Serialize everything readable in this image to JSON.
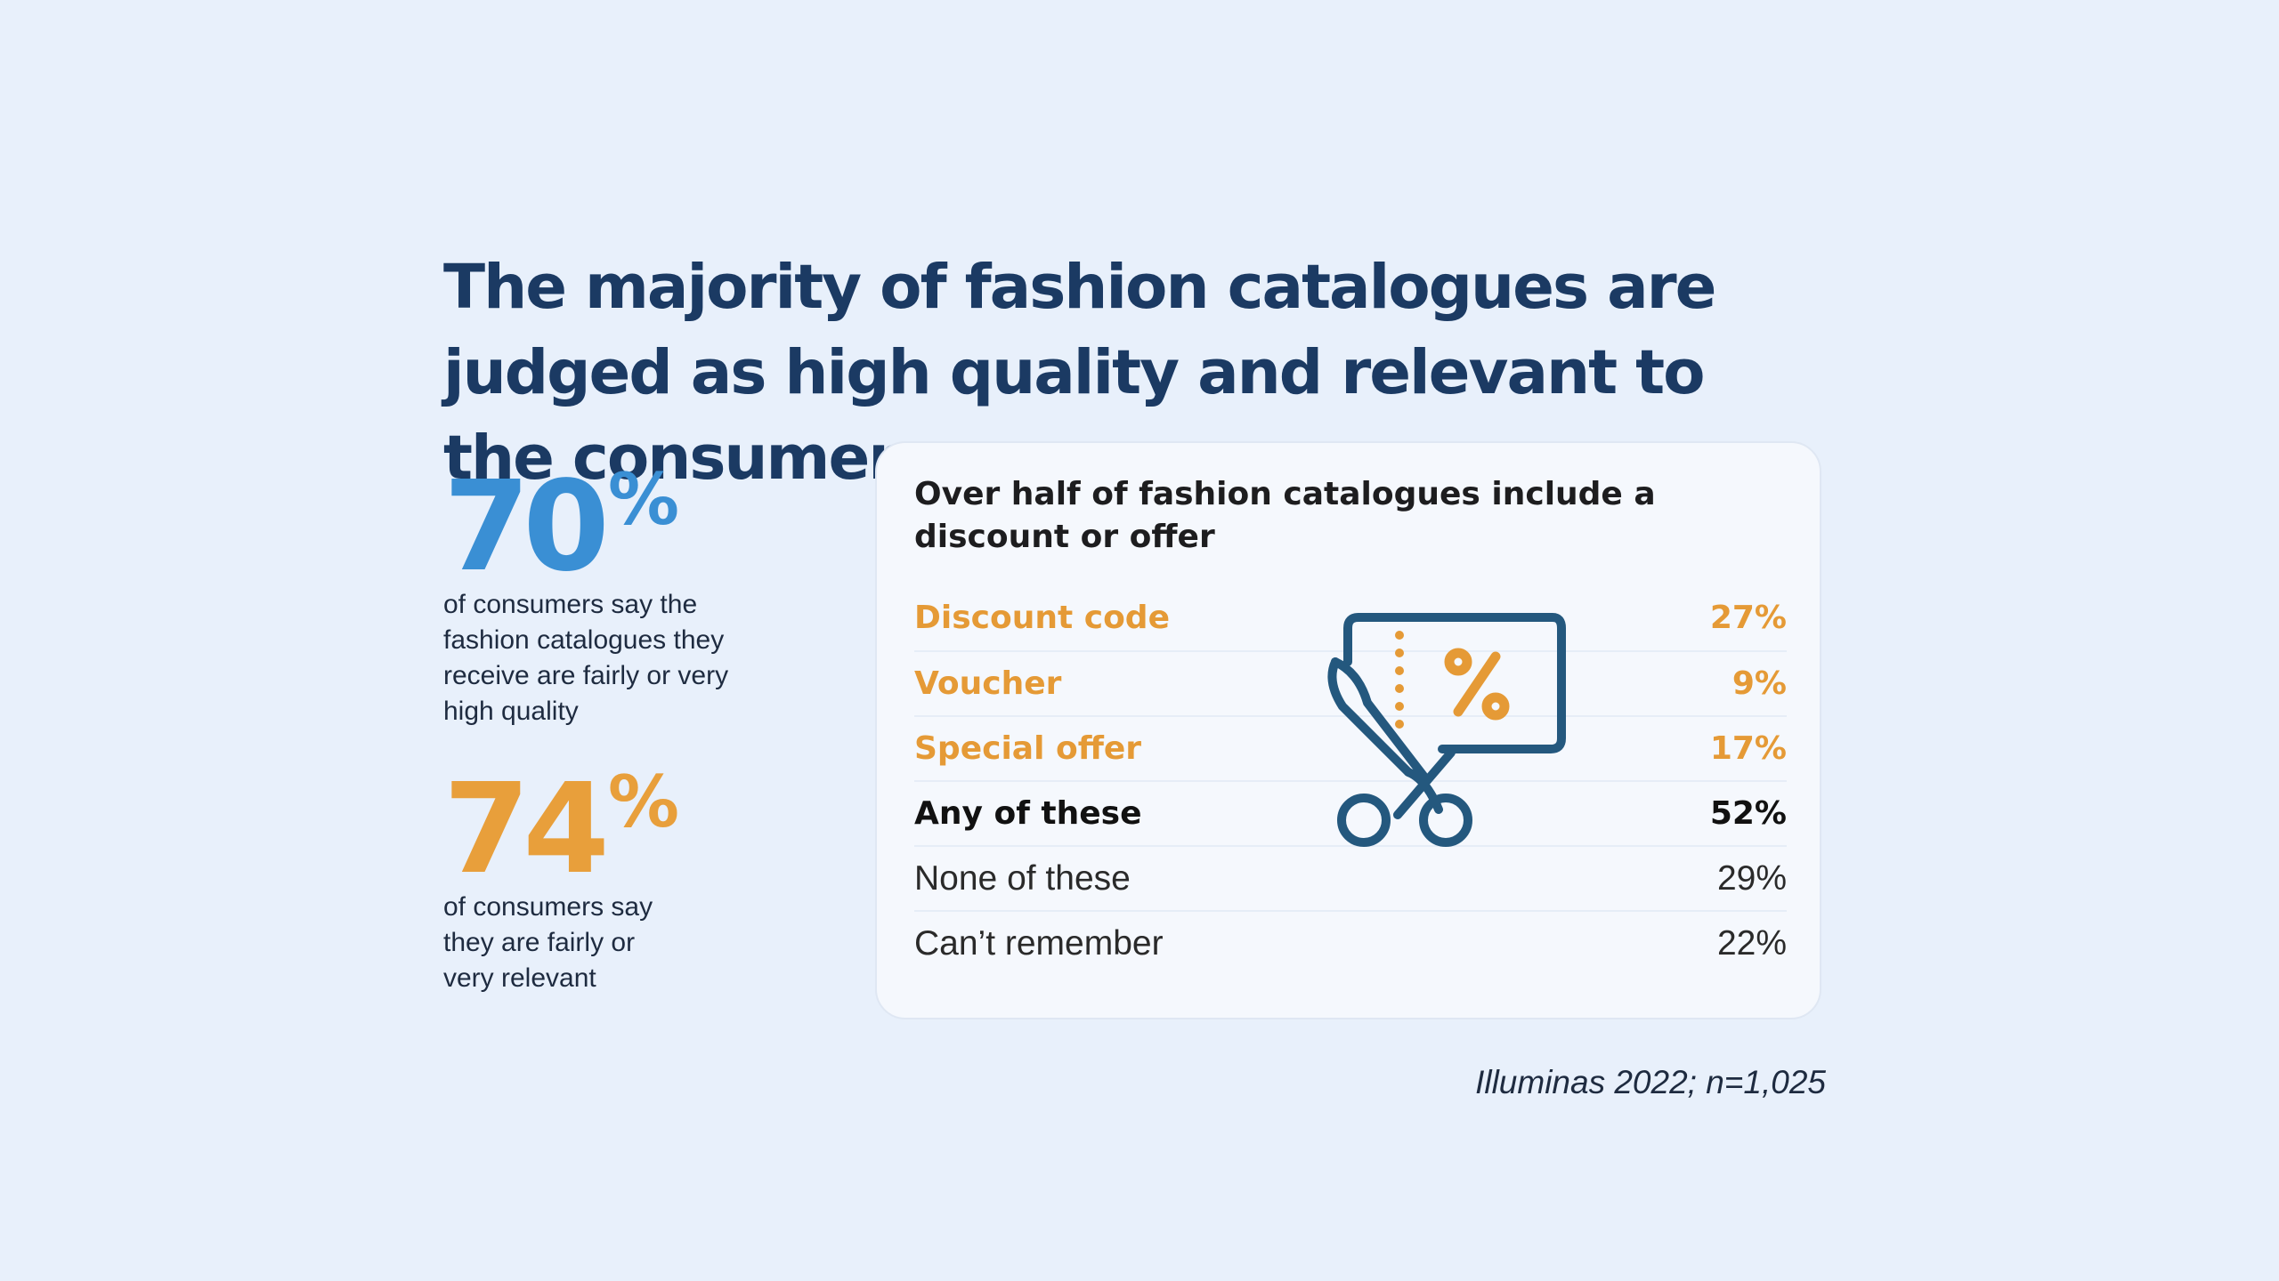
{
  "title": "The majority of fashion catalogues are judged as high quality and relevant to the consumer",
  "stats": [
    {
      "value": "70",
      "unit": "%",
      "caption": "of consumers say the fashion catalogues they receive are fairly or very high quality",
      "color": "#3a8fd4"
    },
    {
      "value": "74",
      "unit": "%",
      "caption": "of consumers say they are fairly or very relevant",
      "color": "#e89f3b"
    }
  ],
  "panel": {
    "title": "Over half of fashion catalogues include a discount or offer",
    "icon": "scissors-coupon-icon"
  },
  "chart_data": {
    "type": "table",
    "title": "Over half of fashion catalogues include a discount or offer",
    "columns": [
      "",
      ""
    ],
    "rows": [
      {
        "label": "Discount code",
        "value": 27,
        "display": "27%",
        "kind": "highlight"
      },
      {
        "label": "Voucher",
        "value": 9,
        "display": "9%",
        "kind": "highlight"
      },
      {
        "label": "Special offer",
        "value": 17,
        "display": "17%",
        "kind": "highlight"
      },
      {
        "label": "Any of these",
        "value": 52,
        "display": "52%",
        "kind": "total"
      },
      {
        "label": "None of these",
        "value": 29,
        "display": "29%",
        "kind": "plain"
      },
      {
        "label": "Can’t remember",
        "value": 22,
        "display": "22%",
        "kind": "plain"
      }
    ],
    "colors": {
      "highlight": "#e59a36",
      "total": "#111111",
      "plain": "#2a2a2a",
      "icon": "#24587e",
      "icon_accent": "#e59a36"
    }
  },
  "source": "Illuminas 2022; n=1,025"
}
